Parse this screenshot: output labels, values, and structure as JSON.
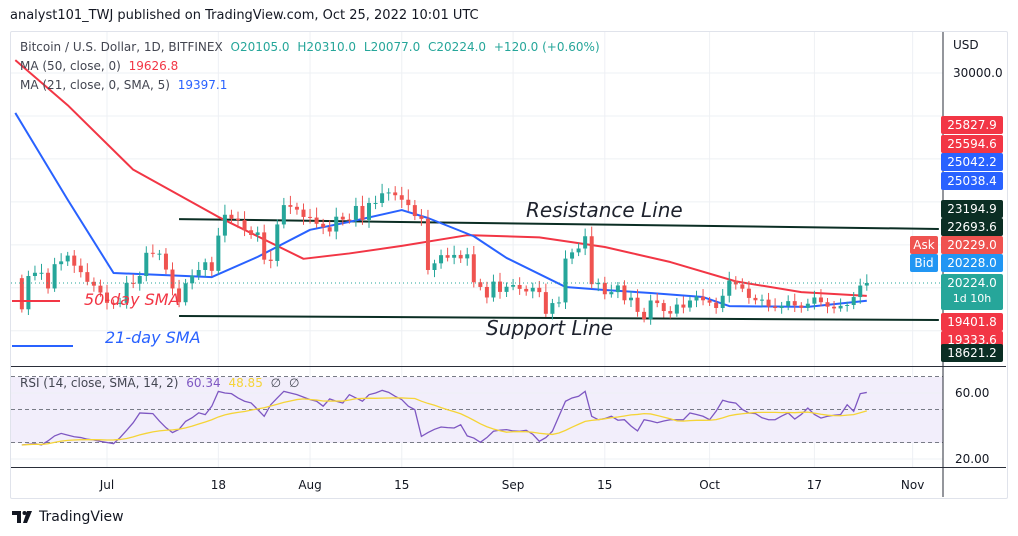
{
  "header": {
    "text": "analyst101_TWJ published on TradingView.com, Oct 25, 2022 10:01 UTC"
  },
  "legend": {
    "symbol": "Bitcoin / U.S. Dollar, 1D, BITFINEX",
    "open": "O20105.0",
    "high": "H20310.0",
    "low": "L20077.0",
    "close": "C20224.0",
    "change": "+120.0 (+0.60%)",
    "ma50_label": "MA (50, close, 0)",
    "ma50_value": "19626.8",
    "ma21_label": "MA (21, close, 0, SMA, 5)",
    "ma21_value": "19397.1",
    "rsi_label": "RSI (14, close, SMA, 14, 2)",
    "rsi_value": "60.34",
    "rsi_sma_value": "48.85",
    "rsi_extra1": "∅",
    "rsi_extra2": "∅"
  },
  "price_axis": {
    "unit": "USD",
    "labels": [
      "30000.0"
    ],
    "tags": [
      {
        "text": "25827.9",
        "color": "#f23645"
      },
      {
        "text": "25594.6",
        "color": "#f23645"
      },
      {
        "text": "25042.2",
        "color": "#2962ff"
      },
      {
        "text": "25038.4",
        "color": "#2962ff"
      },
      {
        "text": "23194.9",
        "color": "#0b2e24"
      },
      {
        "text": "22693.6",
        "color": "#0b2e24"
      },
      {
        "text": "20229.0",
        "color": "#ef5350"
      },
      {
        "text": "20228.0",
        "color": "#2196f3"
      },
      {
        "text": "20224.0",
        "color": "#26a69a"
      },
      {
        "text": "19401.8",
        "color": "#f23645"
      },
      {
        "text": "19333.6",
        "color": "#f23645"
      },
      {
        "text": "18621.2",
        "color": "#0b2e24"
      }
    ],
    "countdown": "1d 10h",
    "ask_label": "Ask",
    "bid_label": "Bid"
  },
  "rsi_axis": {
    "labels": [
      "60.00",
      "20.00"
    ]
  },
  "time_axis": [
    {
      "label": "Jul",
      "date": "2022-07-01"
    },
    {
      "label": "18",
      "date": "2022-07-18"
    },
    {
      "label": "Aug",
      "date": "2022-08-01"
    },
    {
      "label": "15",
      "date": "2022-08-15"
    },
    {
      "label": "Sep",
      "date": "2022-09-01"
    },
    {
      "label": "15",
      "date": "2022-09-15"
    },
    {
      "label": "Oct",
      "date": "2022-10-01"
    },
    {
      "label": "17",
      "date": "2022-10-17"
    },
    {
      "label": "Nov",
      "date": "2022-11-01"
    }
  ],
  "annotations": {
    "resistance_label": "Resistance Line",
    "support_label": "Support Line",
    "ma50_legend": "50-day SMA",
    "ma21_legend": "21-day SMA"
  },
  "footer": {
    "logo_text": "TradingView"
  },
  "chart_data": {
    "type": "candlestick",
    "ylim": [
      17500,
      31000
    ],
    "grid": true,
    "colors": {
      "up": "#26a69a",
      "down": "#ef5350",
      "ma50": "#f23645",
      "ma21": "#2962ff",
      "rsi": "#7e57c2",
      "rsi_sma": "#f5d437",
      "trendline": "#0b2e24"
    },
    "first_open": 20450,
    "closes": [
      {
        "month": "2022-06",
        "first_day": 18,
        "values": [
          19000,
          20550,
          20700,
          20700,
          19970,
          21100,
          21230,
          21500,
          21030,
          20730,
          20280,
          20100,
          19780
        ]
      },
      {
        "month": "2022-07",
        "first_day": 1,
        "values": [
          19300,
          19250,
          19300,
          20230,
          20190,
          20550,
          21630,
          21590,
          21590,
          20850,
          19970,
          19330,
          20210,
          20570,
          20830,
          21190,
          20790,
          22430,
          23400,
          23220,
          23150,
          22680,
          22460,
          22580,
          21310,
          21250,
          22950,
          23850,
          23770,
          23640,
          23300
        ]
      },
      {
        "month": "2022-08",
        "first_day": 1,
        "values": [
          23270,
          22980,
          22820,
          22620,
          23310,
          23180,
          23170,
          23810,
          23160,
          23950,
          23950,
          24400,
          24440,
          24310,
          24100,
          23850,
          23340,
          23210,
          20830,
          21140,
          21520,
          21400,
          21530,
          21370,
          21560,
          20260,
          20040,
          19550,
          20290,
          19810,
          20050
        ]
      },
      {
        "month": "2022-09",
        "first_day": 1,
        "values": [
          20130,
          19950,
          19830,
          20000,
          19800,
          18790,
          19290,
          19320,
          21360,
          21650,
          21830,
          22400,
          20170,
          20230,
          19700,
          19800,
          20110,
          19420,
          19540,
          18880,
          18540,
          19410,
          19290,
          18920,
          18800,
          19220,
          19080,
          19410,
          19590,
          19420
        ]
      },
      {
        "month": "2022-10",
        "first_day": 1,
        "values": [
          19310,
          19060,
          19630,
          20340,
          20160,
          19960,
          19530,
          19420,
          19450,
          19130,
          19060,
          19150,
          19380,
          19180,
          19070,
          19260,
          19550,
          19330,
          19120,
          19040,
          19160,
          19200,
          19570,
          20105,
          20224
        ]
      }
    ],
    "ma50": [
      [
        "2022-06-17",
        30600
      ],
      [
        "2022-06-25",
        28500
      ],
      [
        "2022-07-05",
        25500
      ],
      [
        "2022-07-18",
        23300
      ],
      [
        "2022-07-31",
        21350
      ],
      [
        "2022-08-07",
        21600
      ],
      [
        "2022-08-15",
        21950
      ],
      [
        "2022-08-25",
        22450
      ],
      [
        "2022-09-05",
        22350
      ],
      [
        "2022-09-15",
        21900
      ],
      [
        "2022-09-25",
        21200
      ],
      [
        "2022-10-05",
        20300
      ],
      [
        "2022-10-15",
        19800
      ],
      [
        "2022-10-25",
        19627
      ]
    ],
    "ma21": [
      [
        "2022-06-17",
        28140
      ],
      [
        "2022-06-25",
        24100
      ],
      [
        "2022-07-02",
        20690
      ],
      [
        "2022-07-09",
        20600
      ],
      [
        "2022-07-17",
        20500
      ],
      [
        "2022-07-24",
        21440
      ],
      [
        "2022-08-01",
        22700
      ],
      [
        "2022-08-07",
        23070
      ],
      [
        "2022-08-15",
        23620
      ],
      [
        "2022-08-19",
        23250
      ],
      [
        "2022-08-26",
        22400
      ],
      [
        "2022-08-31",
        21390
      ],
      [
        "2022-09-09",
        20040
      ],
      [
        "2022-09-15",
        19900
      ],
      [
        "2022-09-22",
        19760
      ],
      [
        "2022-09-30",
        19570
      ],
      [
        "2022-10-04",
        19150
      ],
      [
        "2022-10-16",
        19110
      ],
      [
        "2022-10-25",
        19397
      ]
    ],
    "resistance_line": [
      [
        "2022-07-12",
        23200
      ],
      [
        "2022-11-05",
        22740
      ]
    ],
    "support_line": [
      [
        "2022-07-12",
        18690
      ],
      [
        "2022-11-05",
        18500
      ]
    ],
    "rsi": {
      "levels": [
        70,
        50,
        30
      ],
      "ylim": [
        15,
        75
      ],
      "values": [
        {
          "month": "2022-06",
          "first_day": 18,
          "values": [
            28.5,
            29,
            29.3,
            28.5,
            31,
            34,
            35.5,
            34.5,
            33.5,
            33,
            32,
            31.5,
            30.7
          ]
        },
        {
          "month": "2022-07",
          "first_day": 1,
          "values": [
            30,
            29.3,
            33,
            37.4,
            42,
            47.9,
            47.7,
            47.5,
            43,
            39,
            36,
            38,
            42.8,
            45,
            48,
            46.9,
            52,
            61,
            60,
            59.6,
            57,
            55,
            54,
            50,
            45.9,
            52.9,
            57,
            61,
            60,
            59,
            57.5
          ]
        },
        {
          "month": "2022-08",
          "first_day": 1,
          "values": [
            56,
            55,
            52,
            56.4,
            55,
            53.9,
            59,
            57,
            55,
            59,
            60,
            61.6,
            60.4,
            58,
            56,
            52,
            49.9,
            33.7,
            36,
            38,
            39.4,
            39,
            38.8,
            40.8,
            34,
            32.7,
            30.1,
            33,
            36.8,
            37.5,
            37.8
          ]
        },
        {
          "month": "2022-09",
          "first_day": 1,
          "values": [
            37,
            36.8,
            37.4,
            35,
            30.7,
            33,
            36.8,
            46,
            55,
            57,
            58,
            61,
            45.9,
            43.8,
            44.5,
            45.9,
            43.5,
            43.8,
            40,
            37,
            43.8,
            43,
            42,
            43,
            43.8,
            43.8,
            43.8,
            47.9,
            47,
            45.9
          ]
        },
        {
          "month": "2022-10",
          "first_day": 1,
          "values": [
            43.8,
            49,
            55.6,
            54.5,
            53.9,
            50,
            47.9,
            47.5,
            45,
            43.8,
            43.8,
            46,
            47.9,
            44.2,
            47,
            50.9,
            47,
            44.8,
            45.9,
            46.5,
            46.9,
            52.9,
            48.9,
            59.6,
            60.34
          ]
        }
      ],
      "sma_period": 14
    }
  }
}
